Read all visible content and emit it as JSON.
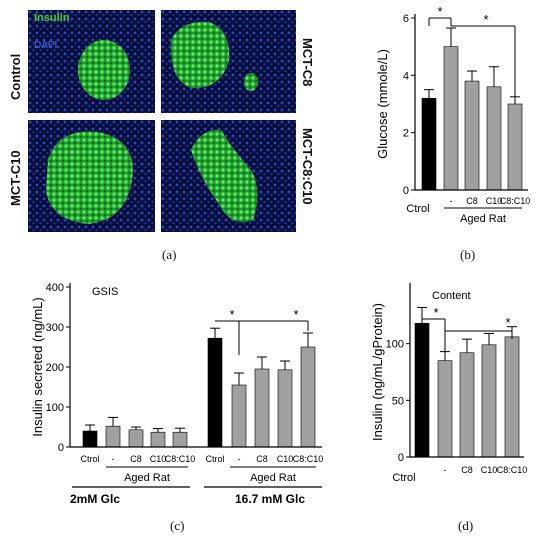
{
  "panel_a": {
    "label": "(a)",
    "legend_insulin": "Insulin",
    "legend_dapi": "DAPI",
    "row_labels_left": [
      "Control",
      "MCT-C10"
    ],
    "row_labels_right": [
      "MCT-C8",
      "MCT-C8:C10"
    ],
    "colors": {
      "insulin": "#3bd13b",
      "dapi": "#2b48c8",
      "background": "#0a0f3a"
    }
  },
  "panel_labels": {
    "b": "(b)",
    "c": "(c)",
    "d": "(d)"
  },
  "chart_data": [
    {
      "id": "b",
      "type": "bar",
      "title": "",
      "ylabel": "Glucose (mmole/L)",
      "ylim": [
        0,
        6
      ],
      "yticks": [
        0,
        2,
        4,
        6
      ],
      "categories": [
        "Ctrol",
        "-",
        "C8",
        "C10",
        "C8:C10"
      ],
      "values": [
        3.2,
        5.0,
        3.8,
        3.6,
        3.0
      ],
      "errors": [
        0.3,
        0.65,
        0.35,
        0.7,
        0.25
      ],
      "bar_colors": [
        "#000000",
        "#a0a0a0",
        "#a0a0a0",
        "#a0a0a0",
        "#a0a0a0"
      ],
      "group_label": "Aged Rat",
      "significance": [
        "*",
        "*"
      ]
    },
    {
      "id": "c",
      "type": "bar",
      "title": "GSIS",
      "ylabel": "Insulin secreted (ng/mL)",
      "ylim": [
        0,
        400
      ],
      "yticks": [
        0,
        100,
        200,
        300,
        400
      ],
      "categories": [
        "Ctrol",
        "-",
        "C8",
        "C10",
        "C8:C10"
      ],
      "series": [
        {
          "name": "2mM Glc",
          "values": [
            40,
            52,
            43,
            37,
            37
          ],
          "errors": [
            15,
            22,
            7,
            9,
            10
          ]
        },
        {
          "name": "16.7 mM Glc",
          "values": [
            272,
            155,
            195,
            193,
            250
          ],
          "errors": [
            25,
            30,
            30,
            22,
            35
          ]
        }
      ],
      "bar_colors": [
        "#000000",
        "#a0a0a0",
        "#a0a0a0",
        "#a0a0a0",
        "#a0a0a0"
      ],
      "group_label": "Aged Rat",
      "significance": [
        "*",
        "*"
      ]
    },
    {
      "id": "d",
      "type": "bar",
      "title": "Content",
      "ylabel": "Insulin (ng/mL/gProtein)",
      "ylim": [
        0,
        150
      ],
      "yticks": [
        0,
        50,
        100
      ],
      "categories": [
        "Ctrol",
        "-",
        "C8",
        "C10",
        "C8:C10"
      ],
      "values": [
        118,
        85,
        92,
        99,
        106
      ],
      "errors": [
        14,
        8,
        12,
        10,
        9
      ],
      "bar_colors": [
        "#000000",
        "#a0a0a0",
        "#a0a0a0",
        "#a0a0a0",
        "#a0a0a0"
      ],
      "significance": [
        "*",
        "*"
      ]
    }
  ]
}
